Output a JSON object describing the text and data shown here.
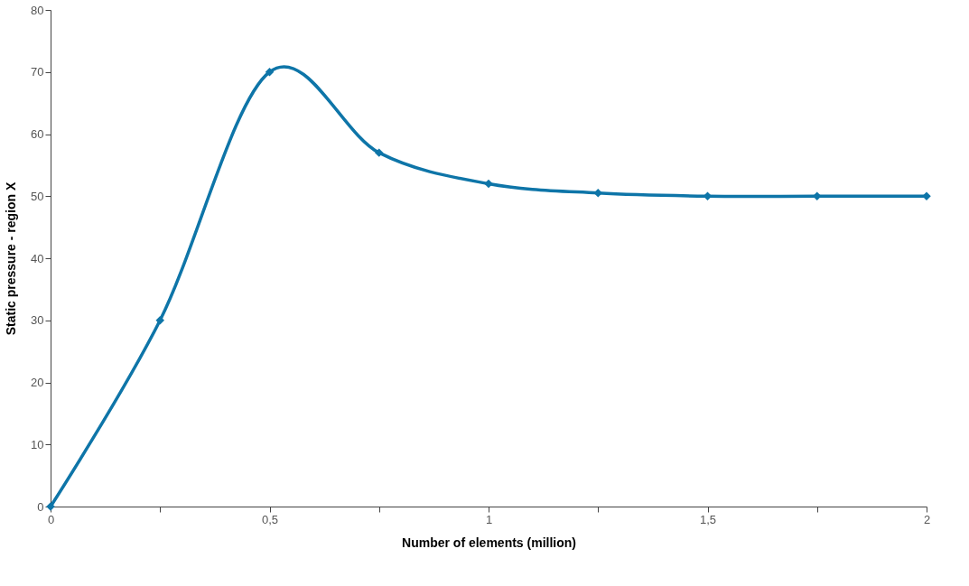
{
  "chart_data": {
    "type": "line",
    "xlabel": "Number of elements (million)",
    "ylabel": "Static pressure - region X",
    "x": [
      0,
      0.25,
      0.5,
      0.75,
      1,
      1.25,
      1.5,
      1.75,
      2
    ],
    "series": [
      {
        "color": "#0e75a8",
        "values": [
          0,
          30,
          70,
          57,
          52,
          50.5,
          50,
          50,
          50
        ]
      }
    ],
    "xlim": [
      0,
      2
    ],
    "xticks": [
      0,
      {
        "value": 0.25,
        "label": null
      },
      {
        "value": 0.5,
        "label": "0,5"
      },
      {
        "value": 0.75,
        "label": null
      },
      1,
      {
        "value": 1.25,
        "label": null
      },
      {
        "value": 1.5,
        "label": "1,5"
      },
      {
        "value": 1.75,
        "label": null
      },
      2
    ],
    "ylim": [
      0,
      80
    ],
    "yticks": [
      0,
      10,
      20,
      30,
      40,
      50,
      60,
      70,
      80
    ],
    "grid": false,
    "marker": "diamond",
    "line_style": "solid"
  }
}
